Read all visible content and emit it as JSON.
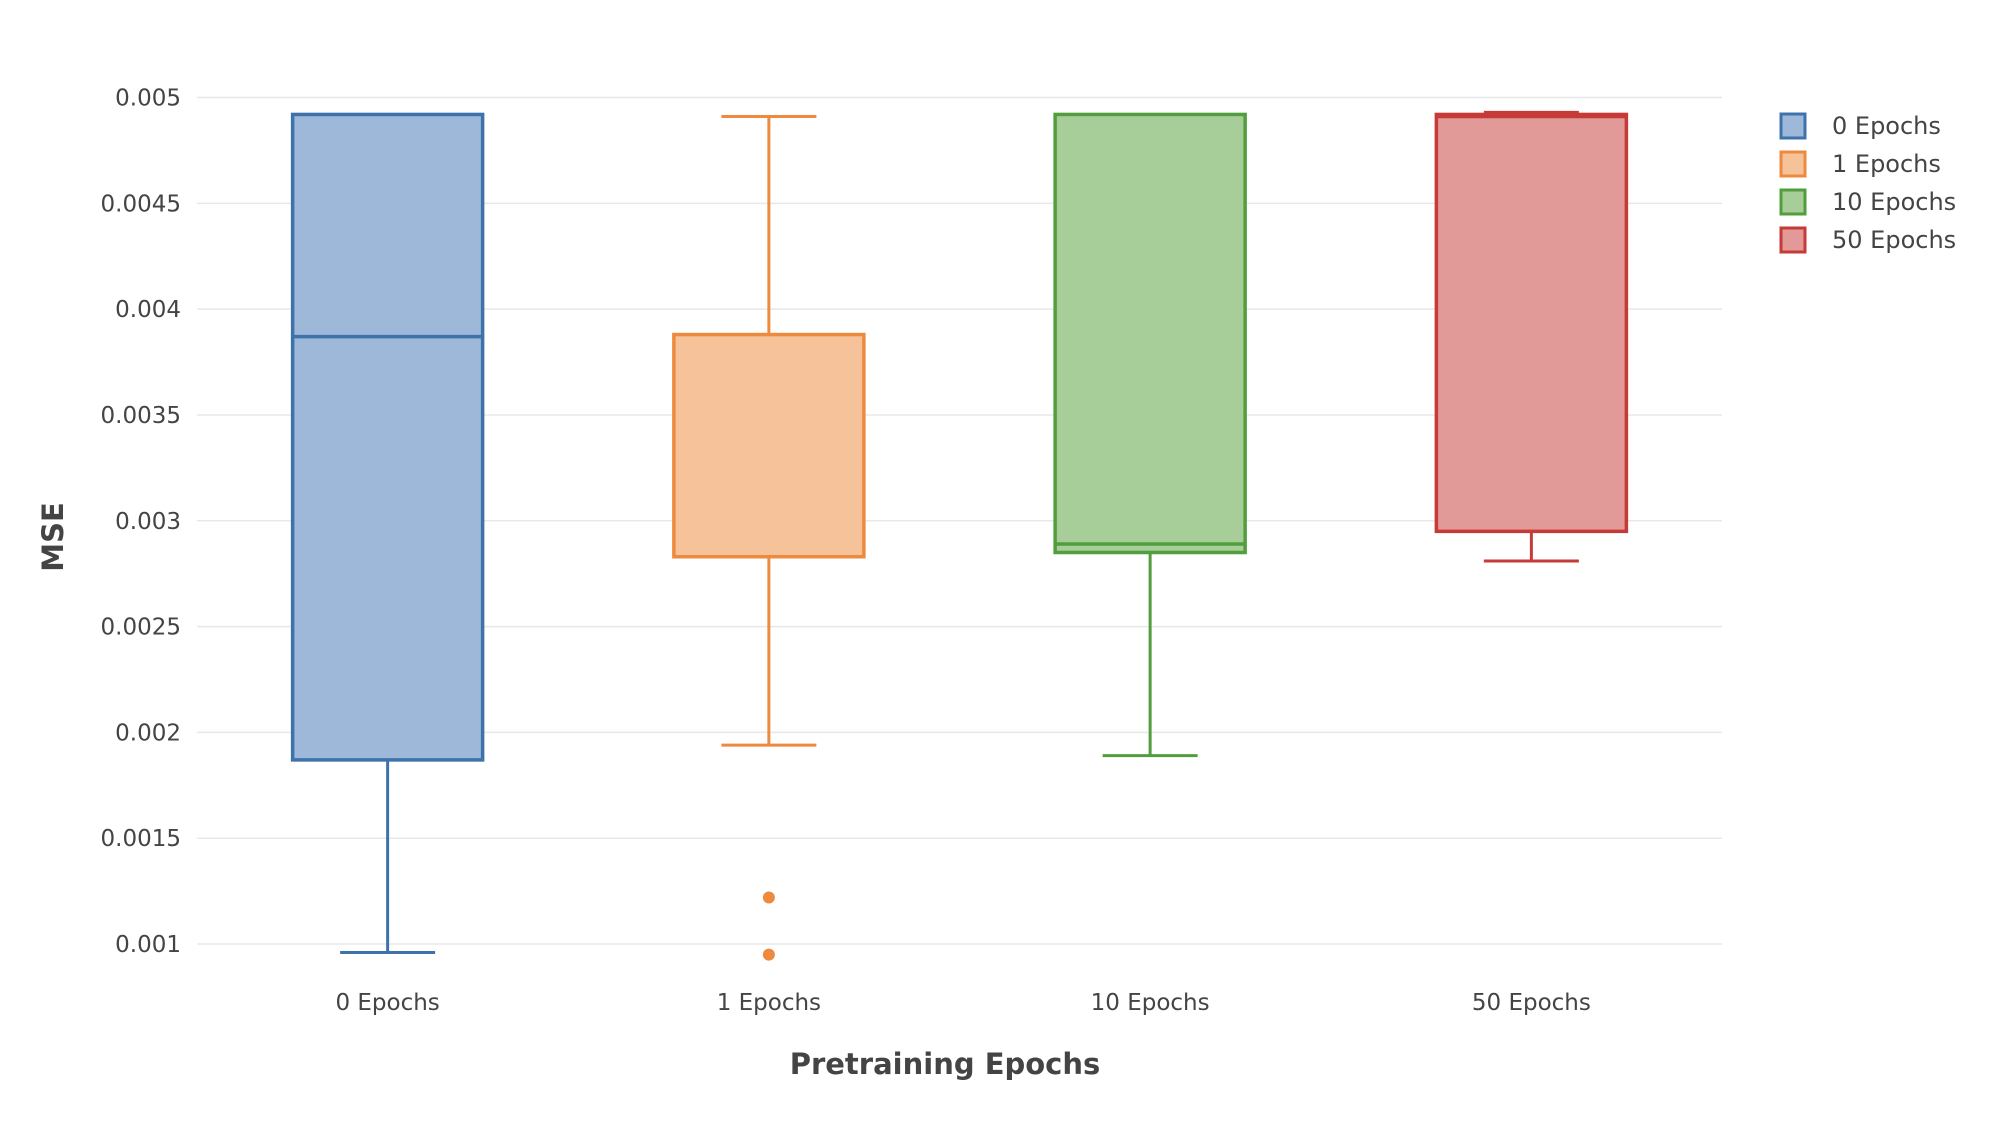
{
  "chart_data": {
    "type": "box",
    "title": "",
    "xlabel": "Pretraining Epochs",
    "ylabel": "MSE",
    "ylim": [
      0.00083,
      0.00513
    ],
    "yticks": [
      0.001,
      0.0015,
      0.002,
      0.0025,
      0.003,
      0.0035,
      0.004,
      0.0045,
      0.005
    ],
    "ytick_labels": [
      "0.001",
      "0.0015",
      "0.002",
      "0.0025",
      "0.003",
      "0.0035",
      "0.004",
      "0.0045",
      "0.005"
    ],
    "categories": [
      "0 Epochs",
      "1 Epochs",
      "10 Epochs",
      "50 Epochs"
    ],
    "grid": true,
    "legend_position": "top-right",
    "series": [
      {
        "name": "0 Epochs",
        "color": "#3d72ab",
        "fill": "#9db8d8",
        "whisker_low": 0.00096,
        "q1": 0.00187,
        "median": 0.00387,
        "q3": 0.00492,
        "whisker_high": 0.00492,
        "outliers": []
      },
      {
        "name": "1 Epochs",
        "color": "#ee8a3d",
        "fill": "#f6c29a",
        "whisker_low": 0.00194,
        "q1": 0.00283,
        "median": 0.00283,
        "q3": 0.00388,
        "whisker_high": 0.00491,
        "outliers": [
          0.00122,
          0.00095
        ]
      },
      {
        "name": "10 Epochs",
        "color": "#529e3e",
        "fill": "#a7cd98",
        "whisker_low": 0.00189,
        "q1": 0.00285,
        "median": 0.00289,
        "q3": 0.00492,
        "whisker_high": 0.00492,
        "outliers": []
      },
      {
        "name": "50 Epochs",
        "color": "#c63a38",
        "fill": "#e29a98",
        "whisker_low": 0.00281,
        "q1": 0.00295,
        "median": 0.00491,
        "q3": 0.00492,
        "whisker_high": 0.00493,
        "outliers": []
      }
    ]
  }
}
